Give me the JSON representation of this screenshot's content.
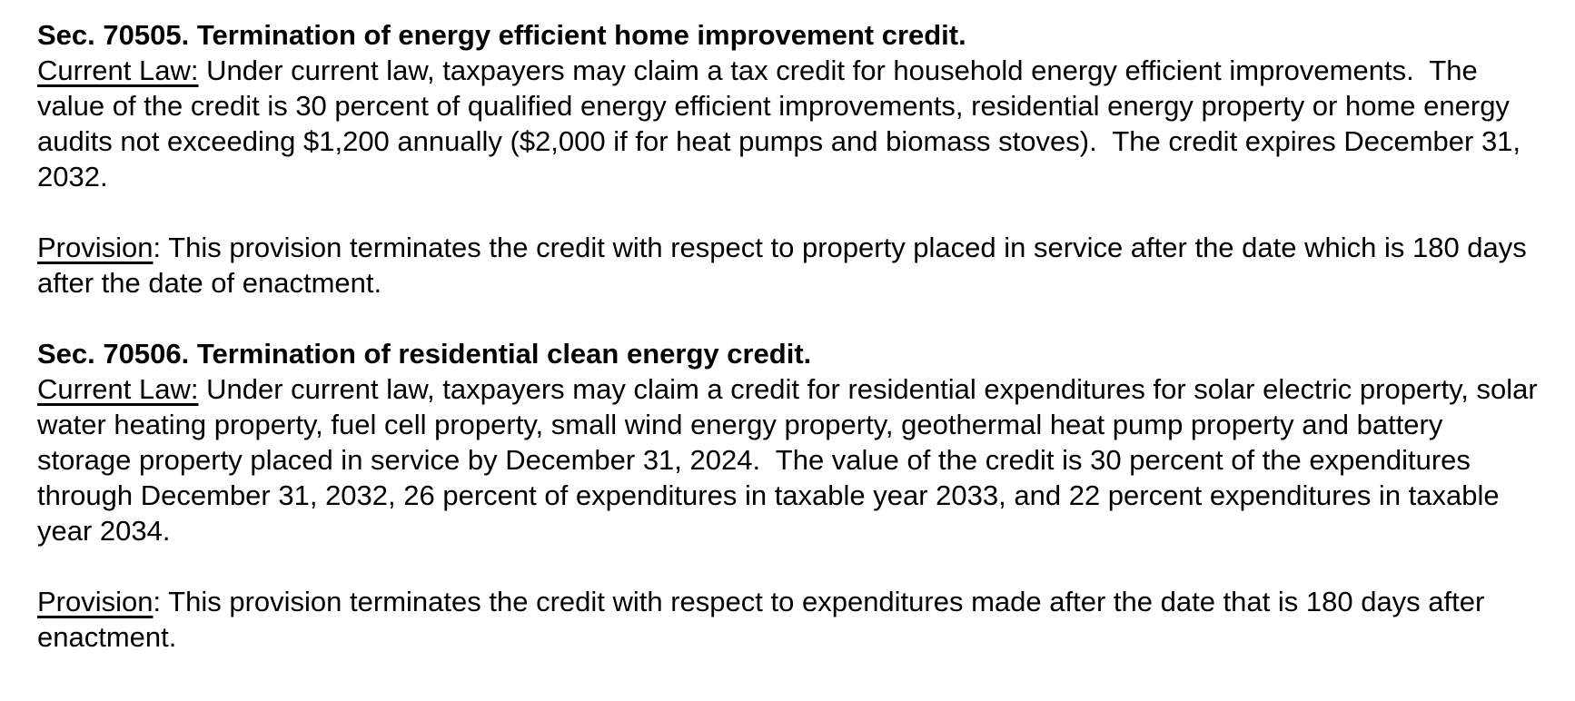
{
  "page": {
    "background_color": "#ffffff",
    "text_color": "#000000"
  },
  "sections": [
    {
      "heading": "Sec. 70505. Termination of energy efficient home improvement credit.",
      "paragraphs": [
        {
          "label": "Current Law:",
          "after_label": "",
          "text": " Under current law, taxpayers may claim a tax credit for household energy efficient improvements.  The value of the credit is 30 percent of qualified energy efficient improvements, residential energy property or home energy audits not exceeding $1,200 annually ($2,000 if for heat pumps and biomass stoves).  The credit expires December 31, 2032."
        },
        {
          "label": "Provision",
          "after_label": ":",
          "text": " This provision terminates the credit with respect to property placed in service after the date which is 180 days after the date of enactment."
        }
      ]
    },
    {
      "heading": "Sec. 70506. Termination of residential clean energy credit.",
      "paragraphs": [
        {
          "label": "Current Law:",
          "after_label": "",
          "text": " Under current law, taxpayers may claim a credit for residential expenditures for solar electric property, solar water heating property, fuel cell property, small wind energy property, geothermal heat pump property and battery storage property placed in service by December 31, 2024.  The value of the credit is 30 percent of the expenditures through December 31, 2032, 26 percent of expenditures in taxable year 2033, and 22 percent expenditures in taxable year 2034."
        },
        {
          "label": "Provision",
          "after_label": ":",
          "text": " This provision terminates the credit with respect to expenditures made after the date that is 180 days after enactment."
        }
      ]
    }
  ]
}
